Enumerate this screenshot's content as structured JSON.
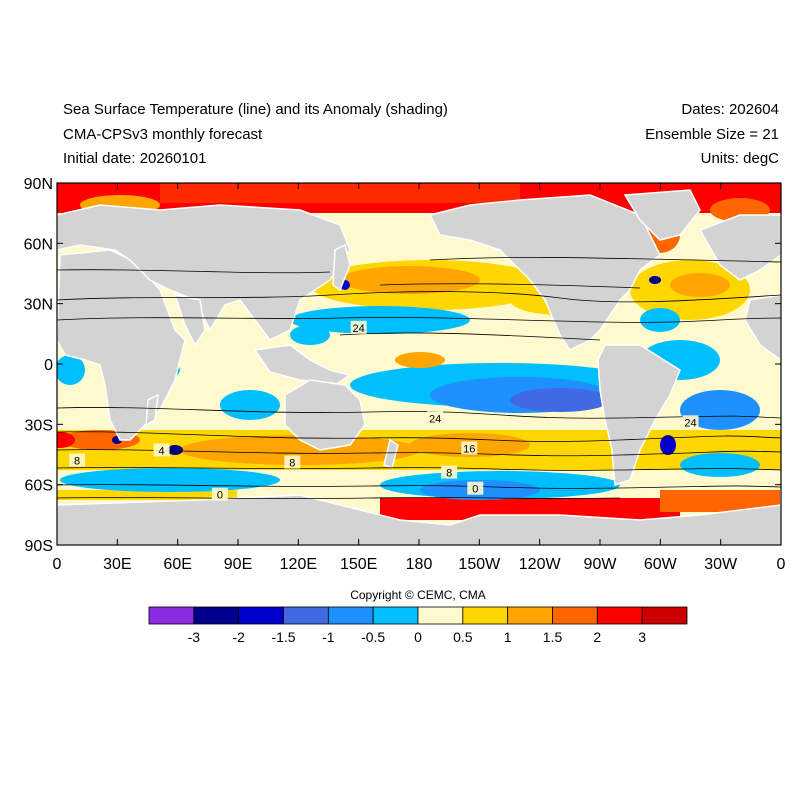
{
  "header": {
    "title": "Sea Surface Temperature (line) and its Anomaly (shading)",
    "model": "CMA-CPSv3 monthly forecast",
    "initial_date": "Initial date: 20260101",
    "dates": "Dates: 202604",
    "ensemble": "Ensemble Size = 21",
    "units": "Units: degC"
  },
  "map": {
    "lat_ticks": [
      "90N",
      "60N",
      "30N",
      "0",
      "30S",
      "60S",
      "90S"
    ],
    "lon_ticks": [
      "0",
      "30E",
      "60E",
      "90E",
      "120E",
      "150E",
      "180",
      "150W",
      "120W",
      "90W",
      "60W",
      "30W",
      "0"
    ],
    "contour_labels": [
      {
        "text": "24",
        "lon": 150,
        "lat": 18
      },
      {
        "text": "24",
        "lon": 188,
        "lat": -27
      },
      {
        "text": "24",
        "lon": 315,
        "lat": -29
      },
      {
        "text": "16",
        "lon": 205,
        "lat": -42
      },
      {
        "text": "8",
        "lon": 10,
        "lat": -48
      },
      {
        "text": "8",
        "lon": 117,
        "lat": -49
      },
      {
        "text": "8",
        "lon": 195,
        "lat": -54
      },
      {
        "text": "4",
        "lon": 52,
        "lat": -43
      },
      {
        "text": "0",
        "lon": 81,
        "lat": -65
      },
      {
        "text": "0",
        "lon": 208,
        "lat": -62
      }
    ],
    "colors": {
      "land": "#d3d3d3",
      "ocean_missing": "#ffffff"
    }
  },
  "colorbar": {
    "labels": [
      "-3",
      "-2",
      "-1.5",
      "-1",
      "-0.5",
      "0",
      "0.5",
      "1",
      "1.5",
      "2",
      "3"
    ],
    "colors": [
      "#8a2be2",
      "#00008b",
      "#0000cd",
      "#4169e1",
      "#1e90ff",
      "#00bfff",
      "#fffacd",
      "#ffd700",
      "#ffa500",
      "#ff6600",
      "#ff0000",
      "#cc0000"
    ]
  },
  "copyright": "Copyright © CEMC, CMA"
}
